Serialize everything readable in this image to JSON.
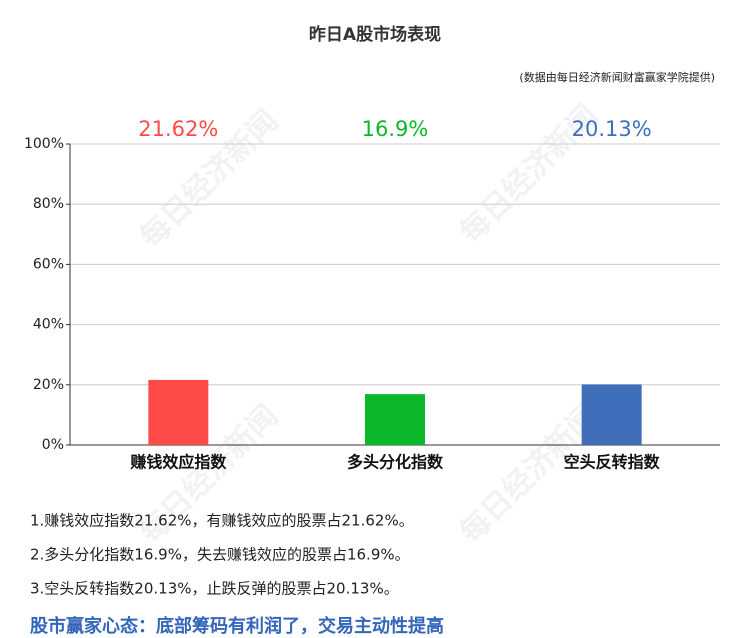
{
  "chart_data": {
    "type": "bar",
    "title": "昨日A股市场表现",
    "subtitle": "(数据由每日经济新闻财富赢家学院提供)",
    "categories": [
      "赚钱效应指数",
      "多头分化指数",
      "空头反转指数"
    ],
    "values": [
      21.62,
      16.9,
      20.13
    ],
    "value_labels": [
      "21.62%",
      "16.9%",
      "20.13%"
    ],
    "colors": [
      "#ff4a4a",
      "#0bb82a",
      "#3f6fba"
    ],
    "ylim": [
      0,
      100
    ],
    "yticks": [
      {
        "value": 0,
        "label": "0%"
      },
      {
        "value": 20,
        "label": "20%"
      },
      {
        "value": 40,
        "label": "40%"
      },
      {
        "value": 60,
        "label": "60%"
      },
      {
        "value": 80,
        "label": "80%"
      },
      {
        "value": 100,
        "label": "100%"
      }
    ],
    "grid": true
  },
  "watermark": "每日经济新闻",
  "notes": [
    "1.赚钱效应指数21.62%，有赚钱效应的股票占21.62%。",
    "2.多头分化指数16.9%，失去赚钱效应的股票占16.9%。",
    "3.空头反转指数20.13%，止跌反弹的股票占20.13%。"
  ],
  "conclusion": "股市赢家心态：底部筹码有利润了，交易主动性提高"
}
